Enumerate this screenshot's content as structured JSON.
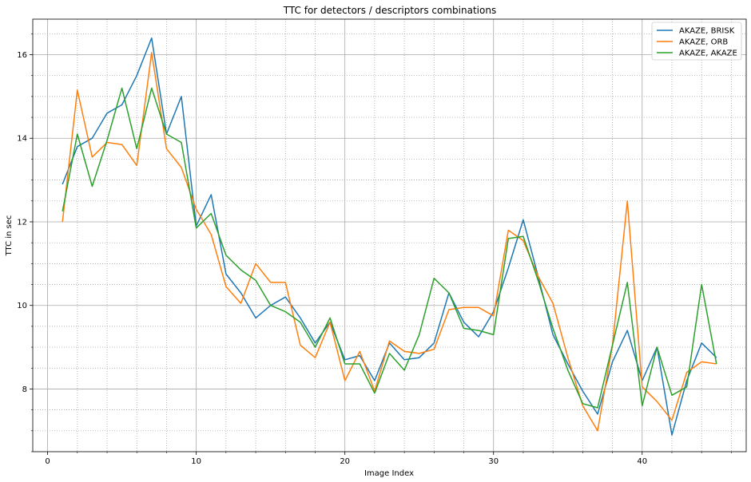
{
  "chart_data": {
    "type": "line",
    "title": "TTC for detectors / descriptors combinations",
    "xlabel": "Image Index",
    "ylabel": "TTC in sec",
    "xlim": [
      -1,
      47
    ],
    "ylim": [
      6.5,
      16.85
    ],
    "xticks": [
      0,
      10,
      20,
      30,
      40
    ],
    "yticks": [
      8,
      10,
      12,
      14,
      16
    ],
    "x_minor_step": 2,
    "y_minor_step": 0.5,
    "grid": true,
    "legend_position": "top-right",
    "x": [
      1,
      2,
      3,
      4,
      5,
      6,
      7,
      8,
      9,
      10,
      11,
      12,
      13,
      14,
      15,
      16,
      17,
      18,
      19,
      20,
      21,
      22,
      23,
      24,
      25,
      26,
      27,
      28,
      29,
      30,
      31,
      32,
      33,
      34,
      35,
      36,
      37,
      38,
      39,
      40,
      41,
      42,
      43,
      44,
      45
    ],
    "series": [
      {
        "name": "AKAZE, BRISK",
        "color": "#1f77b4",
        "values": [
          12.9,
          13.8,
          14.0,
          14.6,
          14.8,
          15.5,
          16.4,
          14.1,
          15.0,
          11.9,
          12.65,
          10.75,
          10.3,
          9.7,
          10.0,
          10.2,
          9.7,
          9.1,
          9.6,
          8.7,
          8.8,
          8.2,
          9.1,
          8.7,
          8.75,
          9.1,
          10.3,
          9.6,
          9.25,
          9.85,
          10.9,
          12.05,
          10.7,
          9.3,
          8.6,
          7.95,
          7.4,
          8.65,
          9.4,
          8.2,
          9.0,
          6.9,
          8.2,
          9.1,
          8.75
        ]
      },
      {
        "name": "AKAZE, ORB",
        "color": "#ff7f0e",
        "values": [
          12.0,
          15.15,
          13.55,
          13.9,
          13.85,
          13.35,
          16.05,
          13.75,
          13.3,
          12.3,
          11.7,
          10.45,
          10.05,
          11.0,
          10.55,
          10.55,
          9.05,
          8.75,
          9.6,
          8.2,
          8.9,
          7.95,
          9.15,
          8.9,
          8.85,
          8.95,
          9.9,
          9.95,
          9.95,
          9.75,
          11.8,
          11.55,
          10.7,
          10.05,
          8.75,
          7.6,
          7.0,
          9.05,
          12.5,
          8.05,
          7.7,
          7.25,
          8.4,
          8.65,
          8.6
        ]
      },
      {
        "name": "AKAZE, AKAZE",
        "color": "#2ca02c",
        "values": [
          12.25,
          14.1,
          12.85,
          13.95,
          15.2,
          13.75,
          15.2,
          14.1,
          13.9,
          11.85,
          12.2,
          11.2,
          10.85,
          10.6,
          10.0,
          9.85,
          9.6,
          9.0,
          9.7,
          8.6,
          8.6,
          7.9,
          8.85,
          8.45,
          9.3,
          10.65,
          10.3,
          9.45,
          9.4,
          9.3,
          11.6,
          11.65,
          10.6,
          9.45,
          8.45,
          7.65,
          7.55,
          9.05,
          10.55,
          7.6,
          9.0,
          7.85,
          8.05,
          10.5,
          8.6
        ]
      }
    ]
  }
}
